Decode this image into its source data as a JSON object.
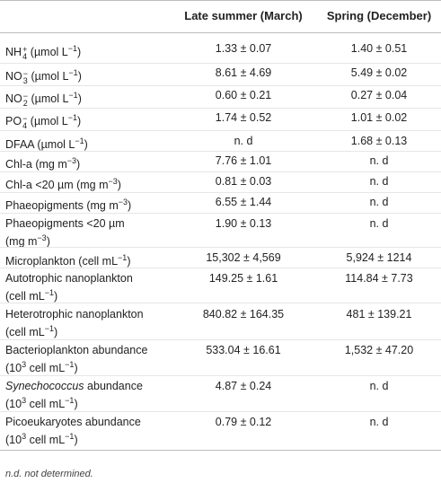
{
  "table": {
    "headers": [
      "",
      "Late summer (March)",
      "Spring (December)"
    ],
    "rows": [
      {
        "label": "NH4+ (µmol L−1)",
        "late_summer": "1.33 ± 0.07",
        "spring": "1.40 ± 0.51"
      },
      {
        "label": "NO3− (µmol L−1)",
        "late_summer": "8.61 ± 4.69",
        "spring": "5.49 ± 0.02"
      },
      {
        "label": "NO2− (µmol L−1)",
        "late_summer": "0.60 ± 0.21",
        "spring": "0.27 ± 0.04"
      },
      {
        "label": "PO4− (µmol L−1)",
        "late_summer": "1.74 ± 0.52",
        "spring": "1.01 ± 0.02"
      },
      {
        "label": "DFAA (µmol L−1)",
        "late_summer": "n. d",
        "spring": "1.68 ± 0.13"
      },
      {
        "label": "Chl-a (mg m−3)",
        "late_summer": "7.76 ± 1.01",
        "spring": "n. d"
      },
      {
        "label": "Chl-a <20 µm (mg m−3)",
        "late_summer": "0.81 ± 0.03",
        "spring": "n. d"
      },
      {
        "label": "Phaeopigments (mg m−3)",
        "late_summer": "6.55 ± 1.44",
        "spring": "n. d"
      },
      {
        "label": "Phaeopigments <20 µm (mg m−3)",
        "late_summer": "1.90 ± 0.13",
        "spring": "n. d"
      },
      {
        "label": "Microplankton (cell mL−1)",
        "late_summer": "15,302 ± 4,569",
        "spring": "5,924 ± 1214"
      },
      {
        "label": "Autotrophic nanoplankton (cell mL−1)",
        "late_summer": "149.25 ± 1.61",
        "spring": "114.84 ± 7.73"
      },
      {
        "label": "Heterotrophic nanoplankton (cell mL−1)",
        "late_summer": "840.82 ± 164.35",
        "spring": "481 ± 139.21"
      },
      {
        "label": "Bacterioplankton abundance (103 cell mL−1)",
        "late_summer": "533.04 ± 16.61",
        "spring": "1,532 ± 47.20"
      },
      {
        "label": "Synechococcus abundance (103 cell mL−1)",
        "late_summer": "4.87 ± 0.24",
        "spring": "n. d"
      },
      {
        "label": "Picoeukaryotes abundance (103 cell mL−1)",
        "late_summer": "0.79 ± 0.12",
        "spring": "n. d"
      }
    ]
  },
  "footnote": "n.d. not determined."
}
